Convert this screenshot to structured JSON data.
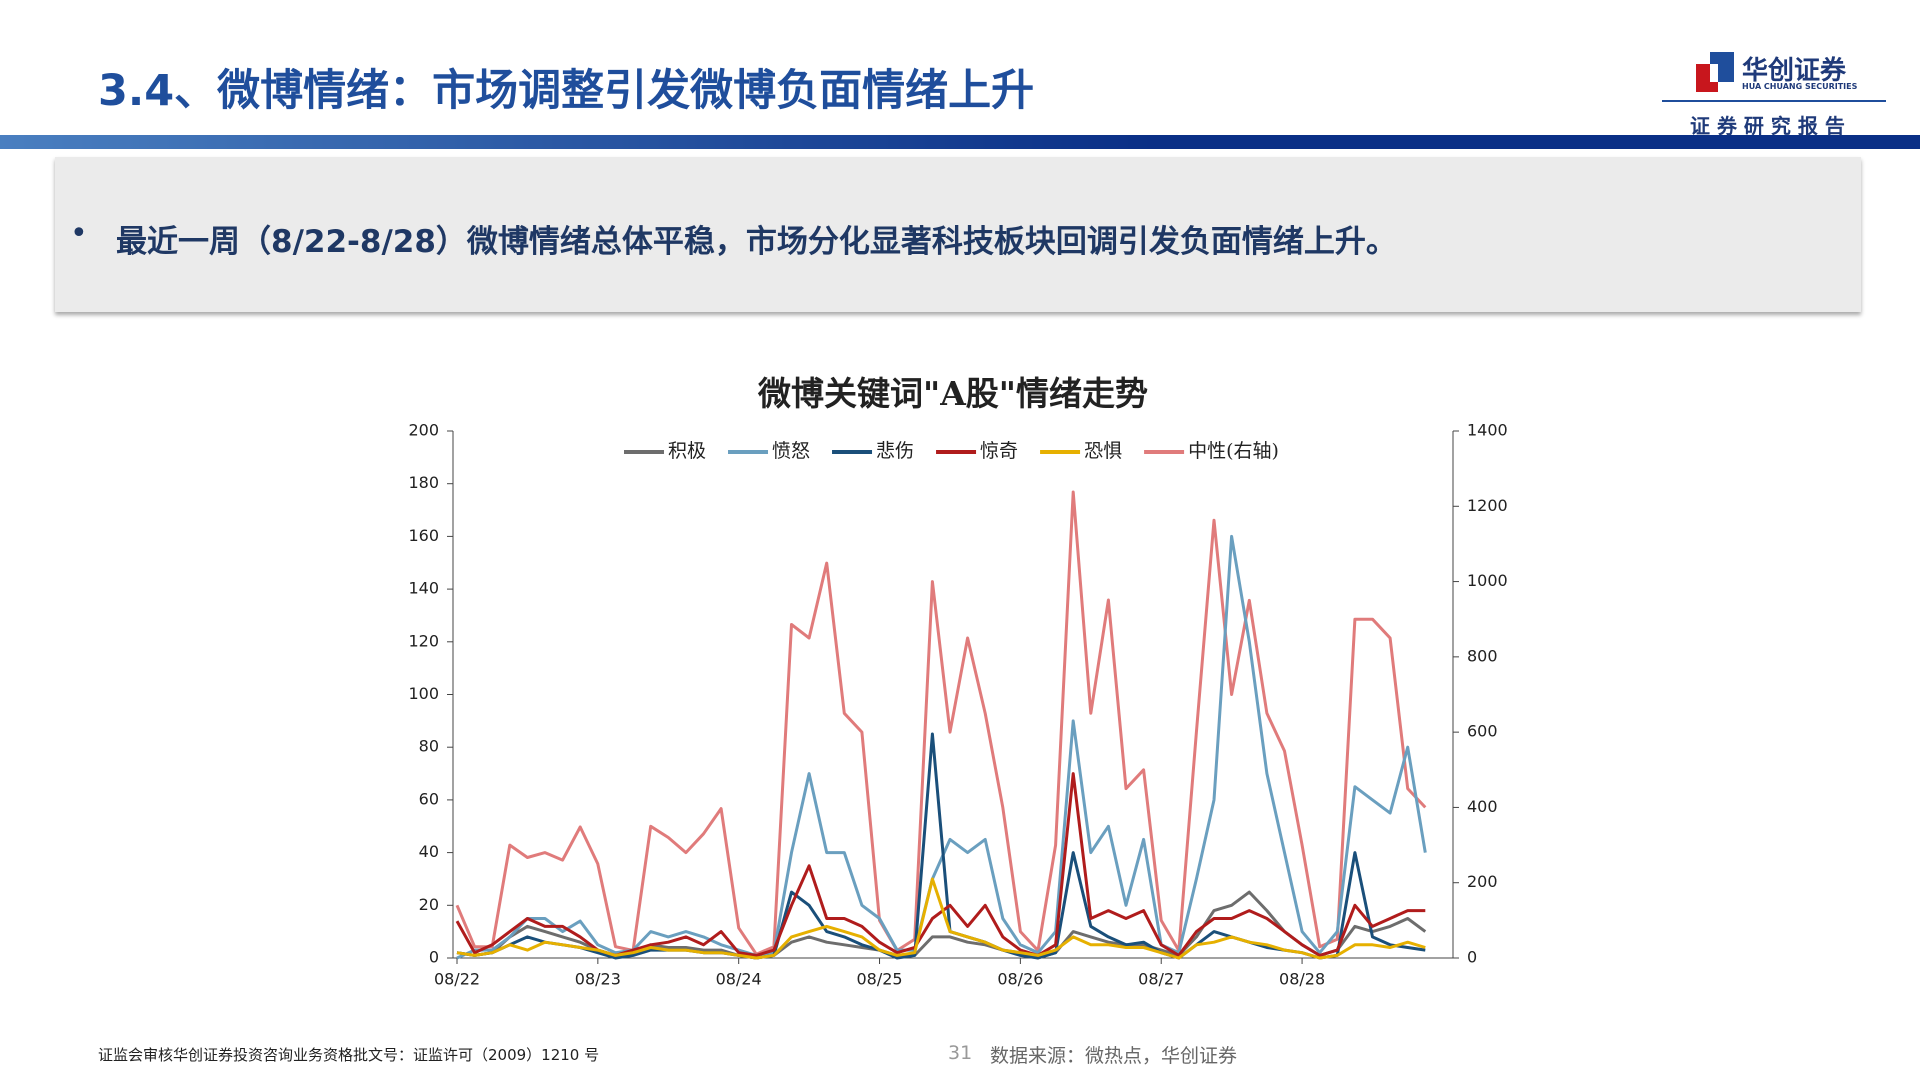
{
  "header": {
    "title": "3.4、微博情绪：市场调整引发微博负面情绪上升",
    "logo": "华创证券",
    "logo_en": "HUA CHUANG SECURITIES",
    "tagline": "证 券 研 究 报 告"
  },
  "bullet": "最近一周（8/22-8/28）微博情绪总体平稳，市场分化显著科技板块回调引发负面情绪上升。",
  "footer": {
    "license": "证监会审核华创证券投资咨询业务资格批文号：证监许可（2009）1210 号",
    "page": "31",
    "source": "数据来源：微热点，华创证券"
  },
  "chart_data": {
    "type": "line",
    "title": "微博关键词\"A股\"情绪走势",
    "categories": [
      "08/22",
      null,
      null,
      null,
      null,
      null,
      null,
      null,
      "08/23",
      null,
      null,
      null,
      null,
      null,
      null,
      null,
      "08/24",
      null,
      null,
      null,
      null,
      null,
      null,
      null,
      "08/25",
      null,
      null,
      null,
      null,
      null,
      null,
      null,
      "08/26",
      null,
      null,
      null,
      null,
      null,
      null,
      null,
      "08/27",
      null,
      null,
      null,
      null,
      null,
      null,
      null,
      "08/28",
      null,
      null,
      null,
      null,
      null,
      null,
      null
    ],
    "series": [
      {
        "name": "中性(右轴)",
        "color": "#e07b7b",
        "axis": "y2",
        "values": [
          140,
          30,
          30,
          300,
          267,
          280,
          260,
          348,
          250,
          30,
          20,
          350,
          320,
          280,
          330,
          397,
          80,
          10,
          30,
          886,
          850,
          1049,
          650,
          600,
          100,
          20,
          50,
          1000,
          600,
          850,
          650,
          400,
          70,
          20,
          300,
          1238,
          650,
          951,
          450,
          500,
          100,
          20,
          600,
          1163,
          700,
          950,
          650,
          550,
          300,
          30,
          50,
          900,
          900,
          850,
          450,
          400
        ]
      },
      {
        "name": "积极",
        "color": "#6d6d6d",
        "values": [
          2,
          1,
          2,
          8,
          12,
          10,
          8,
          6,
          3,
          1,
          2,
          5,
          4,
          4,
          3,
          3,
          1,
          0,
          1,
          6,
          8,
          6,
          5,
          4,
          3,
          1,
          1,
          8,
          8,
          6,
          5,
          3,
          2,
          0,
          2,
          10,
          8,
          6,
          5,
          5,
          3,
          1,
          8,
          18,
          20,
          25,
          18,
          10,
          5,
          1,
          3,
          12,
          10,
          12,
          15,
          10
        ]
      },
      {
        "name": "愤怒",
        "color": "#6a9fbf",
        "values": [
          0,
          3,
          3,
          8,
          15,
          15,
          10,
          14,
          5,
          2,
          3,
          10,
          8,
          10,
          8,
          5,
          3,
          1,
          2,
          40,
          70,
          40,
          40,
          20,
          15,
          3,
          3,
          30,
          45,
          40,
          45,
          15,
          5,
          2,
          10,
          90,
          40,
          50,
          20,
          45,
          5,
          2,
          30,
          60,
          160,
          120,
          70,
          40,
          10,
          2,
          10,
          65,
          60,
          55,
          80,
          40
        ]
      },
      {
        "name": "悲伤",
        "color": "#1a4f7a",
        "values": [
          2,
          1,
          2,
          5,
          8,
          6,
          5,
          4,
          2,
          0,
          1,
          3,
          3,
          3,
          2,
          2,
          1,
          0,
          1,
          25,
          20,
          10,
          8,
          5,
          3,
          0,
          1,
          85,
          10,
          8,
          6,
          3,
          1,
          0,
          2,
          40,
          12,
          8,
          5,
          6,
          2,
          0,
          5,
          10,
          8,
          6,
          4,
          3,
          2,
          0,
          1,
          40,
          8,
          5,
          4,
          3
        ]
      },
      {
        "name": "惊奇",
        "color": "#b01c1c",
        "values": [
          14,
          2,
          5,
          10,
          15,
          12,
          12,
          8,
          3,
          1,
          3,
          5,
          6,
          8,
          5,
          10,
          2,
          1,
          3,
          20,
          35,
          15,
          15,
          12,
          6,
          2,
          4,
          15,
          20,
          12,
          20,
          8,
          3,
          1,
          5,
          70,
          15,
          18,
          15,
          18,
          5,
          1,
          10,
          15,
          15,
          18,
          15,
          10,
          5,
          1,
          3,
          20,
          12,
          15,
          18,
          18
        ]
      },
      {
        "name": "恐惧",
        "color": "#e6b000",
        "values": [
          2,
          1,
          2,
          5,
          3,
          6,
          5,
          4,
          3,
          1,
          2,
          4,
          3,
          3,
          2,
          2,
          1,
          0,
          1,
          8,
          10,
          12,
          10,
          8,
          3,
          1,
          2,
          30,
          10,
          8,
          6,
          3,
          2,
          1,
          3,
          8,
          5,
          5,
          4,
          4,
          2,
          0,
          5,
          6,
          8,
          6,
          5,
          3,
          2,
          0,
          1,
          5,
          5,
          4,
          6,
          4
        ]
      }
    ],
    "ylim": [
      0,
      200
    ],
    "yticks": [
      0,
      20,
      40,
      60,
      80,
      100,
      120,
      140,
      160,
      180,
      200
    ],
    "y2lim": [
      0,
      1400
    ],
    "y2ticks": [
      0,
      200,
      400,
      600,
      800,
      1000,
      1200,
      1400
    ]
  }
}
